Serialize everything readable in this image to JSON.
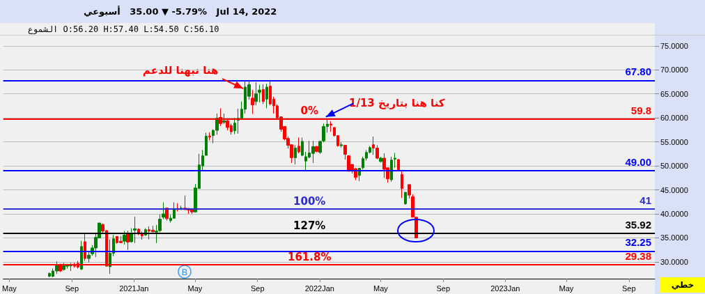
{
  "chart_data": {
    "type": "candlestick",
    "title": "أسبوعي   35.00 ▼ -5.79%   Jul 14, 2022",
    "subtitle": "الشموع O:56.20 H:57.40 L:54.50 C:56.10",
    "x": [
      "2020-07-19",
      "2020-07-26",
      "2020-08-02",
      "2020-08-09",
      "2020-08-16",
      "2020-08-23",
      "2020-08-30",
      "2020-09-06",
      "2020-09-13",
      "2020-09-20",
      "2020-09-27",
      "2020-10-04",
      "2020-10-11",
      "2020-10-18",
      "2020-10-25",
      "2020-11-01",
      "2020-11-08",
      "2020-11-15",
      "2020-11-22",
      "2020-11-29",
      "2020-12-06",
      "2020-12-13",
      "2020-12-20",
      "2020-12-27",
      "2021-01-03",
      "2021-01-10",
      "2021-01-17",
      "2021-01-24",
      "2021-01-31",
      "2021-02-07",
      "2021-02-14",
      "2021-02-21",
      "2021-02-28",
      "2021-03-07",
      "2021-03-14",
      "2021-03-21",
      "2021-03-28",
      "2021-04-04",
      "2021-04-11",
      "2021-04-18",
      "2021-04-25",
      "2021-05-02",
      "2021-05-09",
      "2021-05-16",
      "2021-05-23",
      "2021-05-30",
      "2021-06-06",
      "2021-06-13",
      "2021-06-20",
      "2021-06-27",
      "2021-07-04",
      "2021-07-11",
      "2021-07-18",
      "2021-07-25",
      "2021-08-01",
      "2021-08-08",
      "2021-08-15",
      "2021-08-22",
      "2021-08-29",
      "2021-09-05",
      "2021-09-12",
      "2021-09-19",
      "2021-09-26",
      "2021-10-03",
      "2021-10-10",
      "2021-10-17",
      "2021-10-24",
      "2021-10-31",
      "2021-11-07",
      "2021-11-14",
      "2021-11-21",
      "2021-11-28",
      "2021-12-05",
      "2021-12-12",
      "2021-12-19",
      "2021-12-26",
      "2022-01-02",
      "2022-01-09",
      "2022-01-16",
      "2022-01-23",
      "2022-01-30",
      "2022-02-06",
      "2022-02-13",
      "2022-02-20",
      "2022-02-27",
      "2022-03-06",
      "2022-03-13",
      "2022-03-20",
      "2022-03-27",
      "2022-04-03",
      "2022-04-10",
      "2022-04-17",
      "2022-04-24",
      "2022-05-01",
      "2022-05-08",
      "2022-05-15",
      "2022-05-22",
      "2022-05-29",
      "2022-06-05",
      "2022-06-12",
      "2022-06-19",
      "2022-06-26",
      "2022-07-03",
      "2022-07-10"
    ],
    "ohlc": [
      [
        27.0,
        27.8,
        26.8,
        27.6
      ],
      [
        27.0,
        28.6,
        26.8,
        28.1
      ],
      [
        28.1,
        30.1,
        27.5,
        29.3
      ],
      [
        29.3,
        29.6,
        27.9,
        28.1
      ],
      [
        28.4,
        29.8,
        28.2,
        29.2
      ],
      [
        29.1,
        29.6,
        28.6,
        29.3
      ],
      [
        29.2,
        29.8,
        28.1,
        29.4
      ],
      [
        29.5,
        29.8,
        28.8,
        29.1
      ],
      [
        29.7,
        30.2,
        28.6,
        28.9
      ],
      [
        28.5,
        34.4,
        28.3,
        33.2
      ],
      [
        34.2,
        35.8,
        30.2,
        30.7
      ],
      [
        30.7,
        32.3,
        29.9,
        31.4
      ],
      [
        31.7,
        33.5,
        31.3,
        32.9
      ],
      [
        32.9,
        36.0,
        31.0,
        35.1
      ],
      [
        35.0,
        38.1,
        34.9,
        38.1
      ],
      [
        37.8,
        38.0,
        35.8,
        36.4
      ],
      [
        36.5,
        36.6,
        29.1,
        29.1
      ],
      [
        29.0,
        34.7,
        27.5,
        31.8
      ],
      [
        31.8,
        35.6,
        31.2,
        34.8
      ],
      [
        35.3,
        35.3,
        33.8,
        34.0
      ],
      [
        34.3,
        35.4,
        33.9,
        34.0
      ],
      [
        34.3,
        36.4,
        33.6,
        35.6
      ],
      [
        36.0,
        36.5,
        32.5,
        34.1
      ],
      [
        34.2,
        37.0,
        34.0,
        36.0
      ],
      [
        36.6,
        39.4,
        33.9,
        36.9
      ],
      [
        36.8,
        37.0,
        35.6,
        35.8
      ],
      [
        35.9,
        36.3,
        34.6,
        35.4
      ],
      [
        35.6,
        37.0,
        35.4,
        36.7
      ],
      [
        36.7,
        37.4,
        34.7,
        36.4
      ],
      [
        36.6,
        37.5,
        35.8,
        36.3
      ],
      [
        36.2,
        37.7,
        33.9,
        36.4
      ],
      [
        36.5,
        39.9,
        36.2,
        38.9
      ],
      [
        39.3,
        42.4,
        38.9,
        40.0
      ],
      [
        41.2,
        41.2,
        38.6,
        39.0
      ],
      [
        38.6,
        39.8,
        38.2,
        39.1
      ],
      [
        39.1,
        42.4,
        39.0,
        41.1
      ],
      [
        41.1,
        42.2,
        40.5,
        40.9
      ],
      [
        40.9,
        41.7,
        40.9,
        41.2
      ],
      [
        41.2,
        43.8,
        40.8,
        40.9
      ],
      [
        41.1,
        41.2,
        40.0,
        40.8
      ],
      [
        40.8,
        41.0,
        40.0,
        40.4
      ],
      [
        40.4,
        46.2,
        40.3,
        45.4
      ],
      [
        45.3,
        52.5,
        45.2,
        50.2
      ],
      [
        50.0,
        53.3,
        49.1,
        52.1
      ],
      [
        52.2,
        56.9,
        52.1,
        56.2
      ],
      [
        56.2,
        57.0,
        55.3,
        56.0
      ],
      [
        56.3,
        57.6,
        54.7,
        57.4
      ],
      [
        57.4,
        60.9,
        56.5,
        59.9
      ],
      [
        60.1,
        62.0,
        58.3,
        58.8
      ],
      [
        59.1,
        60.9,
        58.7,
        59.4
      ],
      [
        59.4,
        59.9,
        57.4,
        58.0
      ],
      [
        58.4,
        58.8,
        56.5,
        57.1
      ],
      [
        57.3,
        60.0,
        56.6,
        58.9
      ],
      [
        59.5,
        61.9,
        56.7,
        59.9
      ],
      [
        59.9,
        63.4,
        59.8,
        61.8
      ],
      [
        61.8,
        67.6,
        60.9,
        66.4
      ],
      [
        64.5,
        67.8,
        63.8,
        66.9
      ],
      [
        64.1,
        65.8,
        60.8,
        62.7
      ],
      [
        63.4,
        67.4,
        62.6,
        65.0
      ],
      [
        65.3,
        66.9,
        63.2,
        65.8
      ],
      [
        65.9,
        67.0,
        62.9,
        63.4
      ],
      [
        63.9,
        67.1,
        62.0,
        66.4
      ],
      [
        66.6,
        67.6,
        62.6,
        62.9
      ],
      [
        63.9,
        64.4,
        60.9,
        62.5
      ],
      [
        62.5,
        62.8,
        60.0,
        60.0
      ],
      [
        60.2,
        60.3,
        57.1,
        57.6
      ],
      [
        58.2,
        58.2,
        55.3,
        55.6
      ],
      [
        55.7,
        56.1,
        53.6,
        54.3
      ],
      [
        54.4,
        54.5,
        50.6,
        51.7
      ],
      [
        51.7,
        54.3,
        50.3,
        53.7
      ],
      [
        54.1,
        55.9,
        52.6,
        52.9
      ],
      [
        52.2,
        55.9,
        52.0,
        55.1
      ],
      [
        51.0,
        52.9,
        49.0,
        51.9
      ],
      [
        51.8,
        55.2,
        51.6,
        52.7
      ],
      [
        52.6,
        55.2,
        50.6,
        54.0
      ],
      [
        54.0,
        54.2,
        52.8,
        53.0
      ],
      [
        52.8,
        55.2,
        52.5,
        55.1
      ],
      [
        55.2,
        58.8,
        54.9,
        58.2
      ],
      [
        58.2,
        59.8,
        56.9,
        58.7
      ],
      [
        58.7,
        59.3,
        57.1,
        58.5
      ],
      [
        58.0,
        58.0,
        56.1,
        56.3
      ],
      [
        56.3,
        56.3,
        54.0,
        54.2
      ],
      [
        54.2,
        54.9,
        53.8,
        54.4
      ],
      [
        54.3,
        54.3,
        51.3,
        52.4
      ],
      [
        52.1,
        52.2,
        48.8,
        48.9
      ],
      [
        50.3,
        50.3,
        48.4,
        48.9
      ],
      [
        49.4,
        49.6,
        47.0,
        47.6
      ],
      [
        48.0,
        49.5,
        46.8,
        49.5
      ],
      [
        49.6,
        51.9,
        49.3,
        51.5
      ],
      [
        51.6,
        53.3,
        51.1,
        52.8
      ],
      [
        52.8,
        54.1,
        52.6,
        53.8
      ],
      [
        54.4,
        56.1,
        52.3,
        53.7
      ],
      [
        53.7,
        54.3,
        51.4,
        51.6
      ],
      [
        50.9,
        51.9,
        50.7,
        51.6
      ],
      [
        51.6,
        52.6,
        47.5,
        49.3
      ],
      [
        49.6,
        49.6,
        46.5,
        47.3
      ],
      [
        47.1,
        51.9,
        46.7,
        51.2
      ],
      [
        51.4,
        52.7,
        49.6,
        51.6
      ],
      [
        51.3,
        51.4,
        49.1,
        49.2
      ],
      [
        48.2,
        49.1,
        43.3,
        45.3
      ],
      [
        42.1,
        44.5,
        41.9,
        44.5
      ],
      [
        46.1,
        46.1,
        43.2,
        43.9
      ],
      [
        43.6,
        44.1,
        39.3,
        39.3
      ],
      [
        39.3,
        39.3,
        35.0,
        35.0
      ]
    ],
    "colors": [
      "#008000",
      "#008000",
      "#008000",
      "#ff0000",
      "#008000",
      "#008000",
      "#008000",
      "#ff0000",
      "#ff0000",
      "#008000",
      "#ff0000",
      "#008000",
      "#008000",
      "#008000",
      "#008000",
      "#ff0000",
      "#ff0000",
      "#008000",
      "#008000",
      "#ff0000",
      "#ff0000",
      "#008000",
      "#ff0000",
      "#008000",
      "#008000",
      "#ff0000",
      "#ff0000",
      "#008000",
      "#ff0000",
      "#ff0000",
      "#008000",
      "#008000",
      "#008000",
      "#ff0000",
      "#008000",
      "#008000",
      "#ff0000",
      "#008000",
      "#ff0000",
      "#ff0000",
      "#ff0000",
      "#008000",
      "#008000",
      "#008000",
      "#008000",
      "#ff0000",
      "#008000",
      "#008000",
      "#ff0000",
      "#008000",
      "#ff0000",
      "#ff0000",
      "#008000",
      "#008000",
      "#008000",
      "#008000",
      "#008000",
      "#ff0000",
      "#008000",
      "#008000",
      "#ff0000",
      "#008000",
      "#ff0000",
      "#ff0000",
      "#ff0000",
      "#ff0000",
      "#ff0000",
      "#ff0000",
      "#ff0000",
      "#008000",
      "#ff0000",
      "#008000",
      "#008000",
      "#008000",
      "#008000",
      "#ff0000",
      "#008000",
      "#008000",
      "#008000",
      "#ff0000",
      "#ff0000",
      "#ff0000",
      "#008000",
      "#ff0000",
      "#ff0000",
      "#ff0000",
      "#ff0000",
      "#008000",
      "#008000",
      "#008000",
      "#008000",
      "#ff0000",
      "#ff0000",
      "#008000",
      "#ff0000",
      "#ff0000",
      "#008000",
      "#008000",
      "#ff0000",
      "#ff0000",
      "#008000",
      "#ff0000",
      "#ff0000",
      "#ff0000"
    ],
    "xlim": [
      "2020-04-19",
      "2023-10-22"
    ],
    "xticks": [
      {
        "value": "2020-05-01",
        "label": "May"
      },
      {
        "value": "2020-09-01",
        "label": "Sep"
      },
      {
        "value": "2021-01-01",
        "label": "2021Jan"
      },
      {
        "value": "2021-05-01",
        "label": "May"
      },
      {
        "value": "2021-09-01",
        "label": "Sep"
      },
      {
        "value": "2022-01-01",
        "label": "2022Jan"
      },
      {
        "value": "2022-05-01",
        "label": "May"
      },
      {
        "value": "2022-09-01",
        "label": "Sep"
      },
      {
        "value": "2023-01-01",
        "label": "2023Jan"
      },
      {
        "value": "2023-05-01",
        "label": "May"
      },
      {
        "value": "2023-09-01",
        "label": "Sep"
      }
    ],
    "ylim": [
      26.5,
      77
    ],
    "yticks": [
      {
        "value": 30,
        "label": "30.0000"
      },
      {
        "value": 35,
        "label": "35.0000"
      },
      {
        "value": 40,
        "label": "40.0000"
      },
      {
        "value": 45,
        "label": "45.0000"
      },
      {
        "value": 50,
        "label": "50.0000"
      },
      {
        "value": 55,
        "label": "55.0000"
      },
      {
        "value": 60,
        "label": "60.0000"
      },
      {
        "value": 65,
        "label": "65.0000"
      },
      {
        "value": 70,
        "label": "70.0000"
      },
      {
        "value": 75,
        "label": "75.0000"
      }
    ],
    "grid": "y",
    "ref_lines": [
      {
        "axis": "y",
        "value": 67.8,
        "label": "67.80",
        "color": "#0000ff"
      },
      {
        "axis": "y",
        "value": 59.8,
        "label": "59.8",
        "color": "#ff0000"
      },
      {
        "axis": "y",
        "value": 49,
        "label": "49.00",
        "color": "#0000ff"
      },
      {
        "axis": "y",
        "value": 41,
        "label": "41",
        "color": "#2b2bd0"
      },
      {
        "axis": "y",
        "value": 35.92,
        "label": "35.92",
        "color": "#000000"
      },
      {
        "axis": "y",
        "value": 32.25,
        "label": "32.25",
        "color": "#0000ff"
      },
      {
        "axis": "y",
        "value": 29.38,
        "label": "29.38",
        "color": "#ff0000"
      }
    ],
    "annotations": [
      {
        "text": "هنا نبهنا للدعم",
        "x": "2021-08-01",
        "y": 66.4
      },
      {
        "text": "كنا هنا بتاريخ 1/13",
        "x": "2022-01-16",
        "y": 60.5
      },
      {
        "text": "0%",
        "x": "2021-12-12",
        "y": 59.8
      },
      {
        "text": "100%",
        "x": "2021-12-12",
        "y": 41
      },
      {
        "text": "127%",
        "x": "2021-12-12",
        "y": 35.92
      },
      {
        "text": "161.8%",
        "x": "2021-12-12",
        "y": 29.38
      },
      "B",
      "خطي"
    ]
  }
}
